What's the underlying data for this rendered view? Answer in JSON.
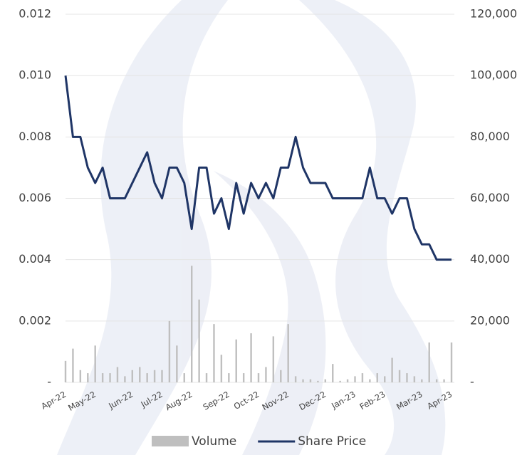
{
  "chart_data": {
    "type": "combo",
    "categories": [
      "Apr-22",
      null,
      null,
      null,
      "May-22",
      null,
      null,
      null,
      null,
      "Jun-22",
      null,
      null,
      null,
      "Jul-22",
      null,
      null,
      null,
      "Aug-22",
      null,
      null,
      null,
      null,
      "Sep-22",
      null,
      null,
      null,
      "Oct-22",
      null,
      null,
      null,
      "Nov-22",
      null,
      null,
      null,
      null,
      "Dec-22",
      null,
      null,
      null,
      "Jan-23",
      null,
      null,
      null,
      "Feb-23",
      null,
      null,
      null,
      null,
      "Mar-23",
      null,
      null,
      null,
      "Apr-23"
    ],
    "series": [
      {
        "name": "Volume",
        "type": "bar",
        "axis": "y2",
        "color": "#bfbfbf",
        "values": [
          7000,
          11000,
          4000,
          3000,
          12000,
          3000,
          3000,
          5000,
          2000,
          4000,
          5000,
          3000,
          4000,
          4000,
          20000,
          12000,
          3000,
          38000,
          27000,
          3000,
          19000,
          9000,
          3000,
          14000,
          3000,
          16000,
          3000,
          5000,
          15000,
          4000,
          19000,
          2000,
          1000,
          1000,
          500,
          1000,
          6000,
          500,
          1000,
          2000,
          3000,
          1000,
          3000,
          2000,
          8000,
          4000,
          3000,
          2000,
          1000,
          13000,
          1000,
          1000,
          13000
        ]
      },
      {
        "name": "Share Price",
        "type": "line",
        "axis": "y",
        "color": "#1f3566",
        "values": [
          0.01,
          0.008,
          0.008,
          0.007,
          0.0065,
          0.007,
          0.006,
          0.006,
          0.006,
          0.0065,
          0.007,
          0.0075,
          0.0065,
          0.006,
          0.007,
          0.007,
          0.0065,
          0.005,
          0.007,
          0.007,
          0.0055,
          0.006,
          0.005,
          0.0065,
          0.0055,
          0.0065,
          0.006,
          0.0065,
          0.006,
          0.007,
          0.007,
          0.008,
          0.007,
          0.0065,
          0.0065,
          0.0065,
          0.006,
          0.006,
          0.006,
          0.006,
          0.006,
          0.007,
          0.006,
          0.006,
          0.0055,
          0.006,
          0.006,
          0.005,
          0.0045,
          0.0045,
          0.004,
          0.004,
          0.004
        ]
      }
    ],
    "ylim": [
      0,
      0.012
    ],
    "yticks": [
      {
        "value": 0,
        "label": "-"
      },
      0.002,
      0.004,
      0.006,
      0.008,
      {
        "value": 0.01,
        "label": "0.010"
      },
      0.012
    ],
    "y2lim": [
      0,
      120000
    ],
    "y2ticks": [
      {
        "value": 0,
        "label": "-"
      },
      {
        "value": 20000,
        "label": "20,000"
      },
      {
        "value": 40000,
        "label": "40,000"
      },
      {
        "value": 60000,
        "label": "60,000"
      },
      {
        "value": 80000,
        "label": "80,000"
      },
      {
        "value": 100000,
        "label": "100,000"
      },
      {
        "value": 120000,
        "label": "120,000"
      }
    ],
    "grid": true
  }
}
